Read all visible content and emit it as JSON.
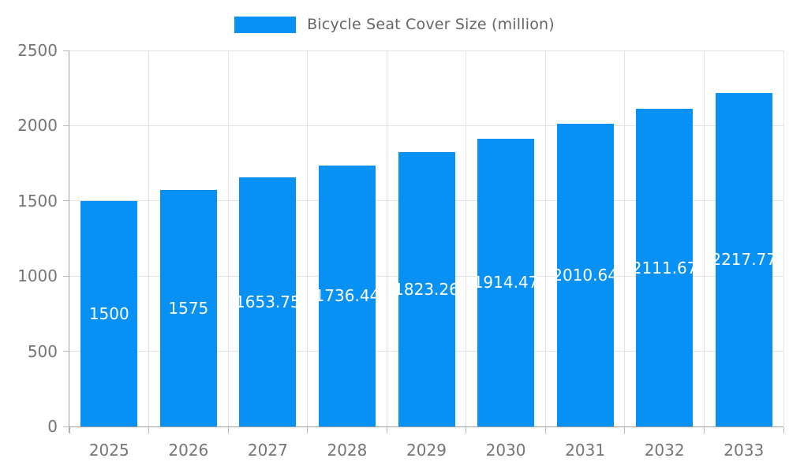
{
  "legend": {
    "label": "Bicycle Seat Cover Size (million)",
    "swatch_color": "#0891F5"
  },
  "chart_data": {
    "type": "bar",
    "title": "Bicycle Seat Cover Size (million)",
    "categories": [
      "2025",
      "2026",
      "2027",
      "2028",
      "2029",
      "2030",
      "2031",
      "2032",
      "2033"
    ],
    "values": [
      1500,
      1575,
      1653.75,
      1736.44,
      1823.26,
      1914.47,
      2010.64,
      2111.67,
      2217.77
    ],
    "value_labels": [
      "1500",
      "1575",
      "1653.75",
      "1736.44",
      "1823.26",
      "1914.47",
      "2010.64",
      "2111.67",
      "2217.77"
    ],
    "xlabel": "",
    "ylabel": "",
    "ylim": [
      0,
      2500
    ],
    "y_ticks": [
      0,
      500,
      1000,
      1500,
      2000,
      2500
    ],
    "y_tick_labels": [
      "0",
      "500",
      "1000",
      "1500",
      "2000",
      "2500"
    ],
    "grid": true,
    "legend_position": "top",
    "bar_color": "#0891F5",
    "bar_label_color": "#ffffff",
    "axis_text_color": "#757575",
    "gridline_color": "#e2e2e2",
    "axis_line_color": "#a0a0a0"
  }
}
